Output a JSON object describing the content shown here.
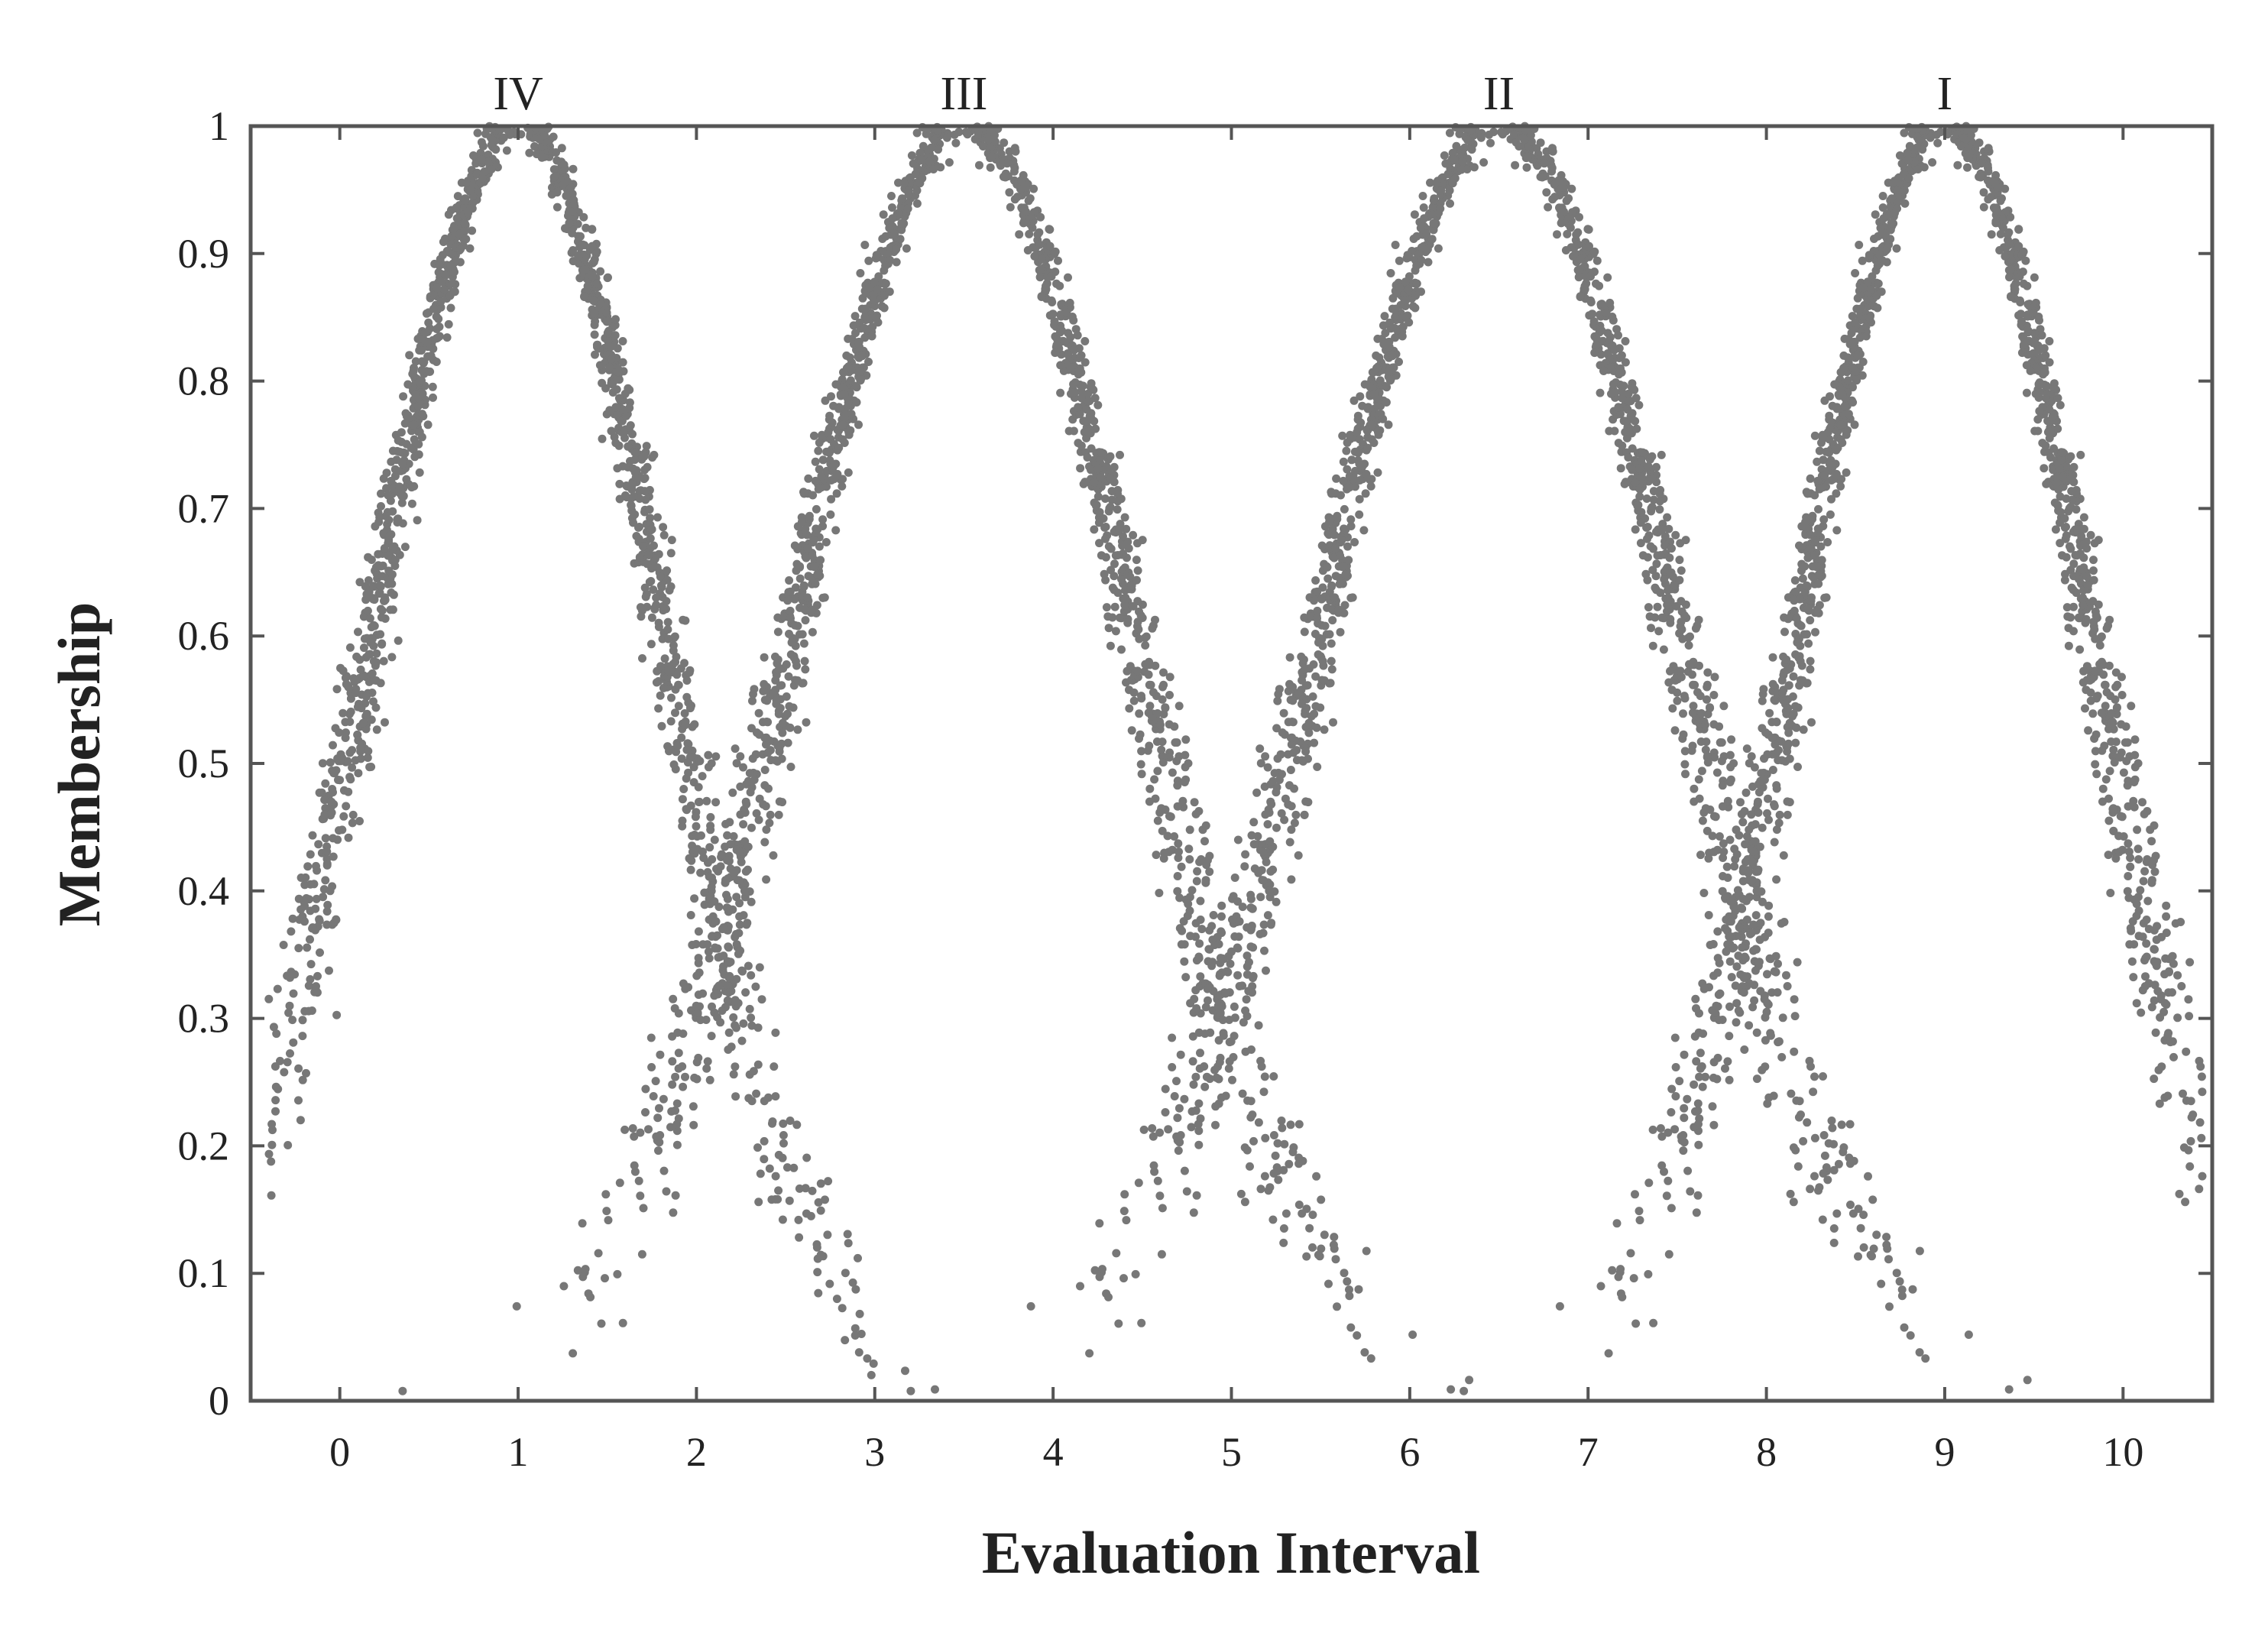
{
  "chart_data": {
    "type": "scatter",
    "title": "",
    "xlabel": "Evaluation Interval",
    "ylabel": "Membership",
    "xlim": [
      -0.5,
      10.5
    ],
    "ylim": [
      0,
      1
    ],
    "xticks": [
      "0",
      "1",
      "2",
      "3",
      "4",
      "5",
      "6",
      "7",
      "8",
      "9",
      "10"
    ],
    "yticks": [
      "0",
      "0.1",
      "0.2",
      "0.3",
      "0.4",
      "0.5",
      "0.6",
      "0.7",
      "0.8",
      "0.9",
      "1"
    ],
    "grid": false,
    "legend": "none",
    "marker_color": "#777777",
    "series": [
      {
        "label": "IV",
        "center": 1.0,
        "peak": 1.0,
        "spread": 0.9,
        "points_approx": 1500
      },
      {
        "label": "III",
        "center": 3.5,
        "peak": 1.0,
        "spread": 1.05,
        "points_approx": 1500
      },
      {
        "label": "II",
        "center": 6.5,
        "peak": 1.0,
        "spread": 1.1,
        "points_approx": 1500
      },
      {
        "label": "I",
        "center": 9.0,
        "peak": 1.0,
        "spread": 0.9,
        "points_approx": 1500
      }
    ]
  }
}
